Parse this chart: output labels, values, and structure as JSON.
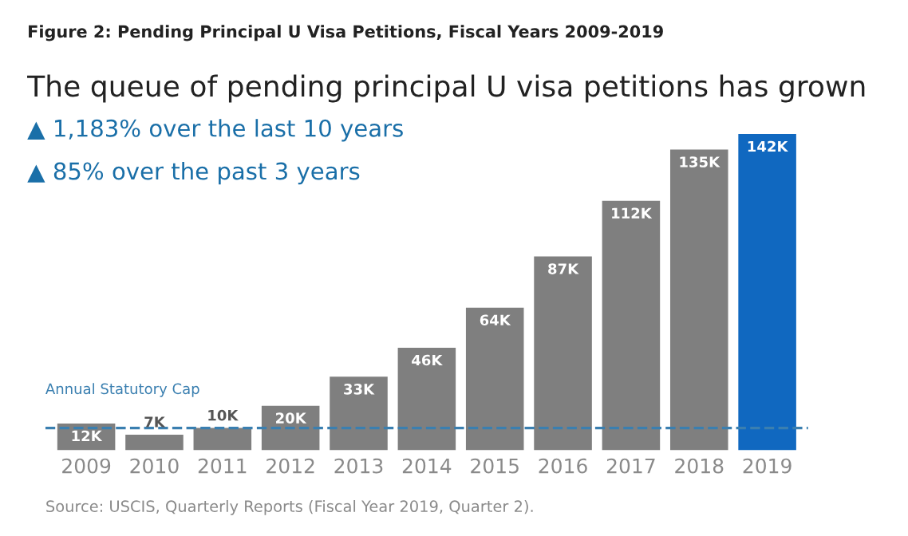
{
  "chart_data": {
    "type": "bar",
    "title": "Figure 2: Pending Principal U Visa Petitions, Fiscal Years 2009-2019",
    "subtitle": "The queue of pending principal U visa petitions has grown",
    "annotations": [
      "▲ 1,183% over the last 10 years",
      "▲ 85% over the past 3 years",
      "Source: USCIS, Quarterly Reports (Fiscal Year 2019, Quarter 2)."
    ],
    "categories": [
      "2009",
      "2010",
      "2011",
      "2012",
      "2013",
      "2014",
      "2015",
      "2016",
      "2017",
      "2018",
      "2019"
    ],
    "values": [
      12,
      7,
      10,
      20,
      33,
      46,
      64,
      87,
      112,
      135,
      142
    ],
    "value_labels": [
      "12K",
      "7K",
      "10K",
      "20K",
      "33K",
      "46K",
      "64K",
      "87K",
      "112K",
      "135K",
      "142K"
    ],
    "colors": [
      "#7f7f7f",
      "#7f7f7f",
      "#7f7f7f",
      "#7f7f7f",
      "#7f7f7f",
      "#7f7f7f",
      "#7f7f7f",
      "#7f7f7f",
      "#7f7f7f",
      "#7f7f7f",
      "#1068c0"
    ],
    "ylim": [
      0,
      142
    ],
    "tick_labels": "x",
    "ref_lines": [
      {
        "axis": "y",
        "value": 10,
        "label": "Annual Statutory Cap",
        "color": "#3a7fb0",
        "line_style": "dashed"
      }
    ],
    "grid": false,
    "legend": false
  }
}
